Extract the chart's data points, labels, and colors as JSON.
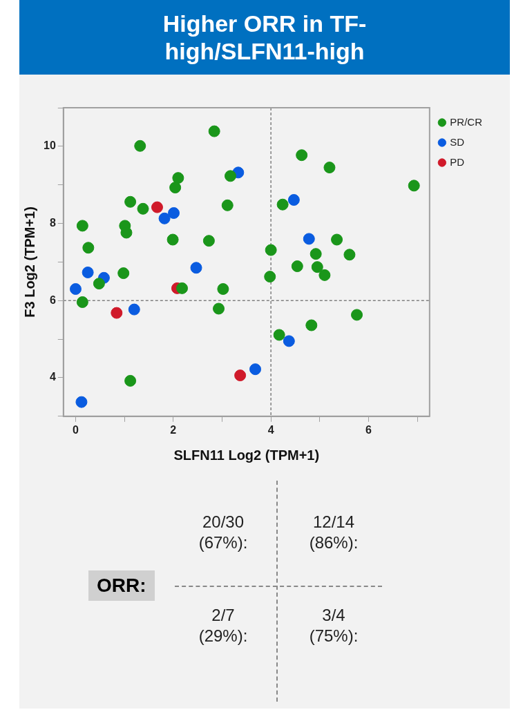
{
  "chart_data": {
    "type": "scatter",
    "title": "Higher ORR in TF-high/SLFN11-high",
    "xlabel": "SLFN11 Log2 (TPM+1)",
    "ylabel": "F3 Log2 (TPM+1)",
    "xlim": [
      -0.25,
      7.25
    ],
    "ylim": [
      3,
      11
    ],
    "xticks": [
      0,
      {
        "value": 1,
        "label": null
      },
      2,
      {
        "value": 3,
        "label": null
      },
      4,
      {
        "value": 5,
        "label": null
      },
      6,
      {
        "value": 7,
        "label": null
      }
    ],
    "yticks": [
      {
        "value": 3,
        "label": null
      },
      4,
      {
        "value": 5,
        "label": null
      },
      6,
      {
        "value": 7,
        "label": null
      },
      8,
      {
        "value": 9,
        "label": null
      },
      10,
      {
        "value": 11,
        "label": null
      }
    ],
    "grid": false,
    "legend": "top right",
    "marker": "circle",
    "ref_lines": [
      {
        "axis": "x",
        "value": 4,
        "color": "#808080",
        "line_style": "dashed"
      },
      {
        "axis": "y",
        "value": 6,
        "color": "#808080",
        "line_style": "dashed"
      }
    ],
    "series": [
      {
        "name": "PR/CR",
        "color": "#1a961a",
        "x": [
          2.84,
          1.32,
          4.63,
          5.2,
          2.1,
          3.17,
          2.04,
          6.93,
          1.12,
          1.38,
          4.24,
          3.11,
          0.14,
          1.01,
          1.04,
          0.26,
          1.99,
          2.73,
          4.0,
          5.35,
          4.92,
          5.61,
          4.54,
          4.95,
          5.1,
          0.98,
          0.48,
          2.18,
          3.02,
          3.98,
          0.14,
          2.93,
          4.17,
          5.76,
          4.83,
          1.12
        ],
        "values": [
          10.39,
          10.01,
          9.77,
          9.45,
          9.18,
          9.23,
          8.93,
          8.98,
          8.56,
          8.38,
          8.49,
          8.47,
          7.94,
          7.94,
          7.76,
          7.37,
          7.58,
          7.55,
          7.31,
          7.58,
          7.21,
          7.19,
          6.89,
          6.87,
          6.66,
          6.71,
          6.44,
          6.32,
          6.3,
          6.62,
          5.96,
          5.79,
          5.11,
          5.63,
          5.36,
          3.92
        ]
      },
      {
        "name": "SD",
        "color": "#0a5ce0",
        "x": [
          3.33,
          4.47,
          2.01,
          1.82,
          4.78,
          2.47,
          0.25,
          0.58,
          0.0,
          1.2,
          4.37,
          3.68,
          0.12
        ],
        "values": [
          9.32,
          8.61,
          8.27,
          8.13,
          7.6,
          6.85,
          6.73,
          6.59,
          6.3,
          5.77,
          4.95,
          4.22,
          3.37
        ]
      },
      {
        "name": "PD",
        "color": "#d01a2a",
        "x": [
          1.67,
          2.08,
          0.84,
          3.37
        ],
        "values": [
          8.42,
          6.32,
          5.68,
          4.06
        ]
      }
    ],
    "annotations": [
      "ORR:",
      "20/30\n(67%):",
      "12/14\n(86%):",
      "2/7\n(29%):",
      "3/4\n(75%):"
    ]
  }
}
